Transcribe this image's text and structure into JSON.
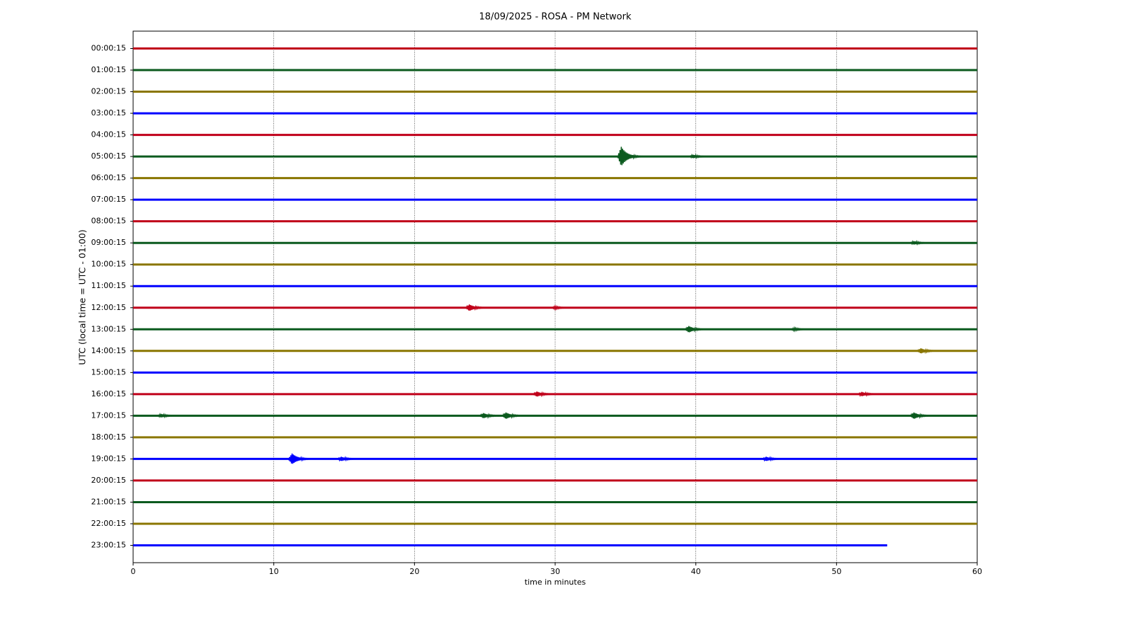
{
  "chart_data": {
    "type": "helicorder",
    "title": "18/09/2025 - ROSA - PM Network",
    "xlabel": "time in minutes",
    "ylabel": "UTC (local time = UTC - 01:00)",
    "xlim": [
      0,
      60
    ],
    "xticks": [
      0,
      10,
      20,
      30,
      40,
      50,
      60
    ],
    "grid": "x",
    "traces": [
      {
        "label": "00:00:15",
        "color": "#c0001a",
        "x": [
          0,
          60
        ],
        "events": []
      },
      {
        "label": "01:00:15",
        "color": "#0b5a1e",
        "x": [
          0,
          60
        ],
        "events": []
      },
      {
        "label": "02:00:15",
        "color": "#8a7600",
        "x": [
          0,
          60
        ],
        "events": []
      },
      {
        "label": "03:00:15",
        "color": "#0000ff",
        "x": [
          0,
          60
        ],
        "events": []
      },
      {
        "label": "04:00:15",
        "color": "#c0001a",
        "x": [
          0,
          60
        ],
        "events": []
      },
      {
        "label": "05:00:15",
        "color": "#0b5a1e",
        "x": [
          0,
          60
        ],
        "events": [
          {
            "x": 34.7,
            "amp": 0.45
          },
          {
            "x": 39.8,
            "amp": 0.08
          }
        ]
      },
      {
        "label": "06:00:15",
        "color": "#8a7600",
        "x": [
          0,
          60
        ],
        "events": []
      },
      {
        "label": "07:00:15",
        "color": "#0000ff",
        "x": [
          0,
          60
        ],
        "events": []
      },
      {
        "label": "08:00:15",
        "color": "#c0001a",
        "x": [
          0,
          60
        ],
        "events": []
      },
      {
        "label": "09:00:15",
        "color": "#0b5a1e",
        "x": [
          0,
          60
        ],
        "events": [
          {
            "x": 55.5,
            "amp": 0.08
          }
        ]
      },
      {
        "label": "10:00:15",
        "color": "#8a7600",
        "x": [
          0,
          60
        ],
        "events": []
      },
      {
        "label": "11:00:15",
        "color": "#0000ff",
        "x": [
          0,
          60
        ],
        "events": []
      },
      {
        "label": "12:00:15",
        "color": "#c0001a",
        "x": [
          0,
          60
        ],
        "events": [
          {
            "x": 23.9,
            "amp": 0.15
          },
          {
            "x": 30,
            "amp": 0.06
          }
        ]
      },
      {
        "label": "13:00:15",
        "color": "#0b5a1e",
        "x": [
          0,
          60
        ],
        "events": [
          {
            "x": 39.5,
            "amp": 0.15
          },
          {
            "x": 47,
            "amp": 0.06
          }
        ]
      },
      {
        "label": "14:00:15",
        "color": "#8a7600",
        "x": [
          0,
          60
        ],
        "events": [
          {
            "x": 56,
            "amp": 0.12
          }
        ]
      },
      {
        "label": "15:00:15",
        "color": "#0000ff",
        "x": [
          0,
          60
        ],
        "events": []
      },
      {
        "label": "16:00:15",
        "color": "#c0001a",
        "x": [
          0,
          60
        ],
        "events": [
          {
            "x": 28.7,
            "amp": 0.12
          },
          {
            "x": 51.8,
            "amp": 0.1
          }
        ]
      },
      {
        "label": "17:00:15",
        "color": "#0b5a1e",
        "x": [
          0,
          60
        ],
        "events": [
          {
            "x": 2,
            "amp": 0.08
          },
          {
            "x": 24.9,
            "amp": 0.12
          },
          {
            "x": 26.5,
            "amp": 0.15
          },
          {
            "x": 55.5,
            "amp": 0.15
          }
        ]
      },
      {
        "label": "18:00:15",
        "color": "#8a7600",
        "x": [
          0,
          60
        ],
        "events": []
      },
      {
        "label": "19:00:15",
        "color": "#0000ff",
        "x": [
          0,
          60
        ],
        "events": [
          {
            "x": 11.3,
            "amp": 0.25
          },
          {
            "x": 14.8,
            "amp": 0.1
          },
          {
            "x": 45,
            "amp": 0.1
          }
        ]
      },
      {
        "label": "20:00:15",
        "color": "#c0001a",
        "x": [
          0,
          60
        ],
        "events": []
      },
      {
        "label": "21:00:15",
        "color": "#0b5a1e",
        "x": [
          0,
          60
        ],
        "events": []
      },
      {
        "label": "22:00:15",
        "color": "#8a7600",
        "x": [
          0,
          60
        ],
        "events": []
      },
      {
        "label": "23:00:15",
        "color": "#0000ff",
        "x": [
          0,
          53.6
        ],
        "events": []
      }
    ]
  }
}
